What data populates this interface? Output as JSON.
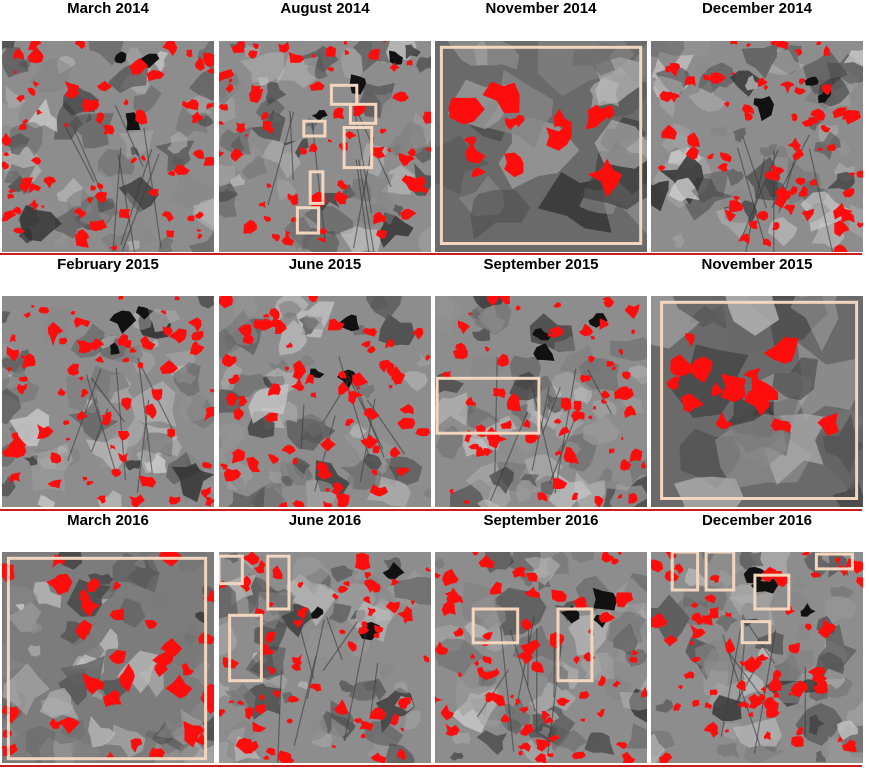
{
  "rows": [
    {
      "panels": [
        {
          "title": "March 2014",
          "seed": 11,
          "scene": "land",
          "boxes": []
        },
        {
          "title": "August 2014",
          "seed": 23,
          "scene": "land",
          "boxes": [
            [
              0.53,
              0.21,
              0.12,
              0.09
            ],
            [
              0.62,
              0.3,
              0.12,
              0.09
            ],
            [
              0.4,
              0.38,
              0.1,
              0.07
            ],
            [
              0.59,
              0.41,
              0.13,
              0.19
            ],
            [
              0.43,
              0.62,
              0.06,
              0.15
            ],
            [
              0.37,
              0.79,
              0.1,
              0.12
            ]
          ]
        },
        {
          "title": "November 2014",
          "seed": 37,
          "scene": "cloud",
          "boxes": [
            [
              0.03,
              0.03,
              0.94,
              0.93
            ]
          ]
        },
        {
          "title": "December 2014",
          "seed": 41,
          "scene": "land",
          "boxes": []
        }
      ]
    },
    {
      "panels": [
        {
          "title": "February 2015",
          "seed": 53,
          "scene": "land",
          "boxes": []
        },
        {
          "title": "June 2015",
          "seed": 61,
          "scene": "land",
          "boxes": []
        },
        {
          "title": "September 2015",
          "seed": 73,
          "scene": "land",
          "boxes": [
            [
              0.01,
              0.39,
              0.48,
              0.26
            ]
          ]
        },
        {
          "title": "November 2015",
          "seed": 83,
          "scene": "cloud",
          "boxes": [
            [
              0.05,
              0.03,
              0.92,
              0.93
            ]
          ]
        }
      ]
    },
    {
      "panels": [
        {
          "title": "March 2016",
          "seed": 97,
          "scene": "cropped",
          "boxes": [
            [
              0.03,
              0.03,
              0.93,
              0.95
            ]
          ]
        },
        {
          "title": "June 2016",
          "seed": 103,
          "scene": "land",
          "boxes": [
            [
              0.0,
              0.02,
              0.11,
              0.13
            ],
            [
              0.23,
              0.02,
              0.1,
              0.25
            ],
            [
              0.05,
              0.3,
              0.15,
              0.31
            ]
          ]
        },
        {
          "title": "September 2016",
          "seed": 113,
          "scene": "land",
          "boxes": [
            [
              0.18,
              0.27,
              0.21,
              0.16
            ],
            [
              0.58,
              0.27,
              0.16,
              0.34
            ]
          ]
        },
        {
          "title": "December 2016",
          "seed": 127,
          "scene": "land",
          "boxes": [
            [
              0.1,
              0.0,
              0.12,
              0.18
            ],
            [
              0.26,
              0.0,
              0.13,
              0.18
            ],
            [
              0.49,
              0.11,
              0.16,
              0.16
            ],
            [
              0.43,
              0.33,
              0.13,
              0.1
            ],
            [
              0.78,
              0.01,
              0.17,
              0.07
            ]
          ]
        }
      ]
    }
  ],
  "colors": {
    "highlight": "#ff0d0d",
    "box": "#f3d6be",
    "divider": "#c81e1e"
  }
}
